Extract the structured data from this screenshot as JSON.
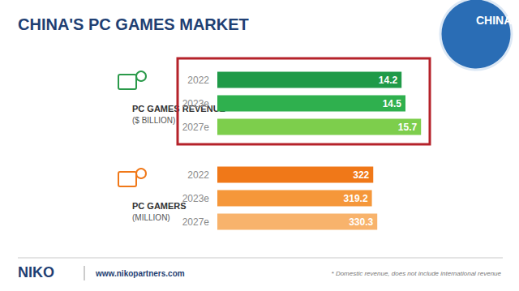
{
  "title": "CHINA'S PC GAMES MARKET",
  "badge": "CHINA",
  "logo": "NIKO",
  "url": "www.nikopartners.com",
  "footnote": "* Domestic revenue, does not include international revenue",
  "chart_data": [
    {
      "type": "bar",
      "orientation": "horizontal",
      "title": "PC GAMES REVENUE*",
      "subtitle": "($ BILLION)",
      "categories": [
        "2022",
        "2023e",
        "2027e"
      ],
      "values": [
        14.2,
        14.5,
        15.7
      ],
      "colors": [
        "#1f9a48",
        "#2fb04e",
        "#7dce4c"
      ],
      "xlim": [
        0,
        16
      ],
      "data_labels": true,
      "tick_labels": "y",
      "grid": false
    },
    {
      "type": "bar",
      "orientation": "horizontal",
      "title": "PC GAMERS",
      "subtitle": "(MILLION)",
      "categories": [
        "2022",
        "2023e",
        "2027e"
      ],
      "values": [
        322,
        319.2,
        330.3
      ],
      "colors": [
        "#f07818",
        "#f5973a",
        "#f8b36c"
      ],
      "xlim": [
        0,
        340
      ],
      "data_labels": true,
      "tick_labels": "y",
      "grid": false
    }
  ]
}
